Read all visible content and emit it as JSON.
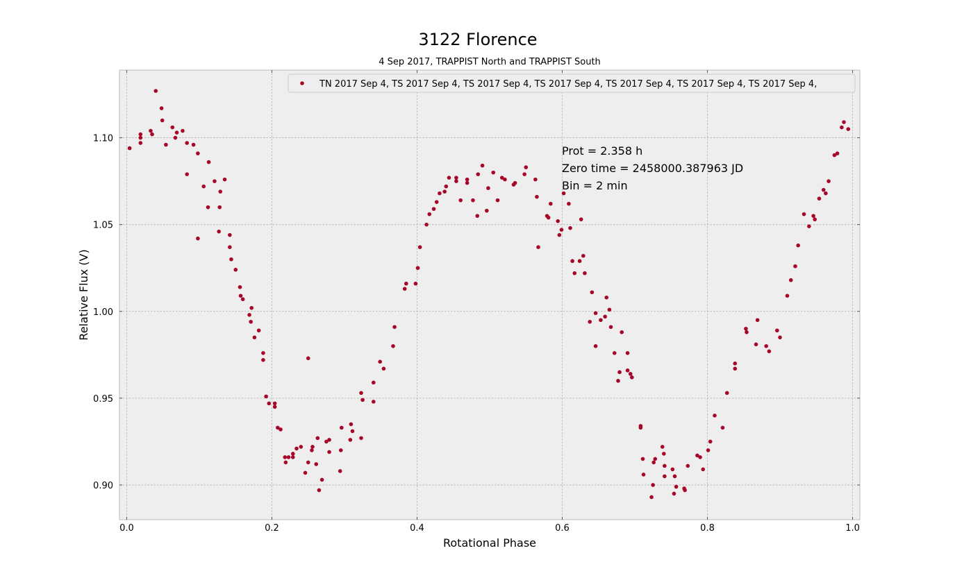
{
  "chart_data": {
    "type": "scatter",
    "title": "3122 Florence",
    "subtitle": "4 Sep 2017, TRAPPIST North and TRAPPIST South",
    "xlabel": "Rotational Phase",
    "ylabel": "Relative Flux (V)",
    "xlim": [
      -0.01,
      1.01
    ],
    "ylim": [
      0.88,
      1.139
    ],
    "xticks": [
      "0.0",
      "0.2",
      "0.4",
      "0.6",
      "0.8",
      "1.0"
    ],
    "yticks": [
      "0.90",
      "0.95",
      "1.00",
      "1.05",
      "1.10"
    ],
    "grid": true,
    "legend_placement": "top-right",
    "legend_text": "TN 2017 Sep 4, TS 2017 Sep 4, TS 2017 Sep 4, TS 2017 Sep 4, TS 2017 Sep 4, TS 2017 Sep 4, TS 2017 Sep 4,",
    "annotations": [
      "Prot = 2.358 h",
      "Zero time = 2458000.387963 JD",
      "Bin = 2 min"
    ],
    "marker_color": "#a60628",
    "series": [
      {
        "points": [
          [
            0.004,
            1.094
          ],
          [
            0.019,
            1.102
          ],
          [
            0.019,
            1.1
          ],
          [
            0.019,
            1.097
          ],
          [
            0.033,
            1.104
          ],
          [
            0.035,
            1.102
          ],
          [
            0.04,
            1.127
          ],
          [
            0.048,
            1.117
          ],
          [
            0.049,
            1.11
          ],
          [
            0.054,
            1.096
          ],
          [
            0.063,
            1.106
          ],
          [
            0.067,
            1.1
          ],
          [
            0.069,
            1.103
          ],
          [
            0.077,
            1.104
          ],
          [
            0.083,
            1.097
          ],
          [
            0.083,
            1.079
          ],
          [
            0.092,
            1.096
          ],
          [
            0.098,
            1.091
          ],
          [
            0.098,
            1.042
          ],
          [
            0.106,
            1.072
          ],
          [
            0.112,
            1.06
          ],
          [
            0.113,
            1.086
          ],
          [
            0.121,
            1.075
          ],
          [
            0.127,
            1.046
          ],
          [
            0.128,
            1.06
          ],
          [
            0.129,
            1.069
          ],
          [
            0.135,
            1.076
          ],
          [
            0.142,
            1.044
          ],
          [
            0.142,
            1.037
          ],
          [
            0.144,
            1.03
          ],
          [
            0.15,
            1.024
          ],
          [
            0.156,
            1.014
          ],
          [
            0.157,
            1.009
          ],
          [
            0.16,
            1.007
          ],
          [
            0.169,
            0.998
          ],
          [
            0.171,
            0.994
          ],
          [
            0.172,
            1.002
          ],
          [
            0.176,
            0.985
          ],
          [
            0.182,
            0.989
          ],
          [
            0.188,
            0.976
          ],
          [
            0.188,
            0.972
          ],
          [
            0.192,
            0.951
          ],
          [
            0.196,
            0.947
          ],
          [
            0.204,
            0.947
          ],
          [
            0.204,
            0.945
          ],
          [
            0.208,
            0.933
          ],
          [
            0.212,
            0.932
          ],
          [
            0.218,
            0.916
          ],
          [
            0.219,
            0.913
          ],
          [
            0.223,
            0.916
          ],
          [
            0.229,
            0.916
          ],
          [
            0.229,
            0.918
          ],
          [
            0.234,
            0.921
          ],
          [
            0.24,
            0.922
          ],
          [
            0.246,
            0.907
          ],
          [
            0.25,
            0.973
          ],
          [
            0.25,
            0.913
          ],
          [
            0.255,
            0.92
          ],
          [
            0.256,
            0.922
          ],
          [
            0.261,
            0.912
          ],
          [
            0.263,
            0.927
          ],
          [
            0.265,
            0.897
          ],
          [
            0.269,
            0.903
          ],
          [
            0.275,
            0.925
          ],
          [
            0.279,
            0.926
          ],
          [
            0.279,
            0.919
          ],
          [
            0.294,
            0.908
          ],
          [
            0.295,
            0.92
          ],
          [
            0.296,
            0.933
          ],
          [
            0.308,
            0.926
          ],
          [
            0.309,
            0.935
          ],
          [
            0.311,
            0.931
          ],
          [
            0.323,
            0.927
          ],
          [
            0.323,
            0.953
          ],
          [
            0.325,
            0.949
          ],
          [
            0.34,
            0.959
          ],
          [
            0.34,
            0.948
          ],
          [
            0.349,
            0.971
          ],
          [
            0.354,
            0.967
          ],
          [
            0.367,
            0.98
          ],
          [
            0.369,
            0.991
          ],
          [
            0.383,
            1.013
          ],
          [
            0.385,
            1.016
          ],
          [
            0.398,
            1.016
          ],
          [
            0.401,
            1.025
          ],
          [
            0.404,
            1.037
          ],
          [
            0.413,
            1.05
          ],
          [
            0.417,
            1.056
          ],
          [
            0.423,
            1.059
          ],
          [
            0.427,
            1.063
          ],
          [
            0.431,
            1.068
          ],
          [
            0.438,
            1.069
          ],
          [
            0.44,
            1.072
          ],
          [
            0.444,
            1.077
          ],
          [
            0.454,
            1.077
          ],
          [
            0.454,
            1.075
          ],
          [
            0.46,
            1.064
          ],
          [
            0.469,
            1.076
          ],
          [
            0.469,
            1.074
          ],
          [
            0.477,
            1.064
          ],
          [
            0.483,
            1.055
          ],
          [
            0.484,
            1.079
          ],
          [
            0.49,
            1.084
          ],
          [
            0.496,
            1.058
          ],
          [
            0.498,
            1.071
          ],
          [
            0.505,
            1.08
          ],
          [
            0.511,
            1.064
          ],
          [
            0.517,
            1.077
          ],
          [
            0.521,
            1.076
          ],
          [
            0.533,
            1.073
          ],
          [
            0.535,
            1.074
          ],
          [
            0.548,
            1.079
          ],
          [
            0.55,
            1.083
          ],
          [
            0.563,
            1.076
          ],
          [
            0.565,
            1.066
          ],
          [
            0.567,
            1.037
          ],
          [
            0.579,
            1.055
          ],
          [
            0.581,
            1.054
          ],
          [
            0.584,
            1.062
          ],
          [
            0.594,
            1.052
          ],
          [
            0.596,
            1.044
          ],
          [
            0.599,
            1.047
          ],
          [
            0.602,
            1.068
          ],
          [
            0.609,
            1.062
          ],
          [
            0.611,
            1.048
          ],
          [
            0.614,
            1.029
          ],
          [
            0.617,
            1.022
          ],
          [
            0.624,
            1.029
          ],
          [
            0.626,
            1.053
          ],
          [
            0.629,
            1.032
          ],
          [
            0.631,
            1.022
          ],
          [
            0.638,
            0.994
          ],
          [
            0.641,
            1.011
          ],
          [
            0.646,
            0.98
          ],
          [
            0.646,
            0.999
          ],
          [
            0.653,
            0.995
          ],
          [
            0.659,
            0.997
          ],
          [
            0.661,
            1.008
          ],
          [
            0.665,
            1.001
          ],
          [
            0.667,
            0.991
          ],
          [
            0.672,
            0.976
          ],
          [
            0.677,
            0.96
          ],
          [
            0.679,
            0.965
          ],
          [
            0.682,
            0.988
          ],
          [
            0.69,
            0.976
          ],
          [
            0.69,
            0.966
          ],
          [
            0.694,
            0.964
          ],
          [
            0.696,
            0.962
          ],
          [
            0.708,
            0.934
          ],
          [
            0.708,
            0.933
          ],
          [
            0.711,
            0.915
          ],
          [
            0.712,
            0.906
          ],
          [
            0.723,
            0.893
          ],
          [
            0.725,
            0.9
          ],
          [
            0.726,
            0.913
          ],
          [
            0.728,
            0.915
          ],
          [
            0.738,
            0.922
          ],
          [
            0.74,
            0.918
          ],
          [
            0.741,
            0.905
          ],
          [
            0.741,
            0.911
          ],
          [
            0.752,
            0.909
          ],
          [
            0.754,
            0.895
          ],
          [
            0.755,
            0.905
          ],
          [
            0.757,
            0.899
          ],
          [
            0.768,
            0.898
          ],
          [
            0.769,
            0.897
          ],
          [
            0.773,
            0.911
          ],
          [
            0.786,
            0.917
          ],
          [
            0.79,
            0.916
          ],
          [
            0.794,
            0.909
          ],
          [
            0.801,
            0.92
          ],
          [
            0.804,
            0.925
          ],
          [
            0.81,
            0.94
          ],
          [
            0.821,
            0.933
          ],
          [
            0.827,
            0.953
          ],
          [
            0.838,
            0.967
          ],
          [
            0.838,
            0.97
          ],
          [
            0.853,
            0.99
          ],
          [
            0.854,
            0.988
          ],
          [
            0.867,
            0.981
          ],
          [
            0.869,
            0.995
          ],
          [
            0.881,
            0.98
          ],
          [
            0.885,
            0.977
          ],
          [
            0.896,
            0.989
          ],
          [
            0.9,
            0.985
          ],
          [
            0.91,
            1.009
          ],
          [
            0.915,
            1.018
          ],
          [
            0.921,
            1.026
          ],
          [
            0.925,
            1.038
          ],
          [
            0.933,
            1.056
          ],
          [
            0.94,
            1.049
          ],
          [
            0.946,
            1.055
          ],
          [
            0.948,
            1.053
          ],
          [
            0.954,
            1.065
          ],
          [
            0.96,
            1.07
          ],
          [
            0.963,
            1.068
          ],
          [
            0.967,
            1.075
          ],
          [
            0.975,
            1.09
          ],
          [
            0.979,
            1.091
          ],
          [
            0.985,
            1.106
          ],
          [
            0.988,
            1.109
          ],
          [
            0.994,
            1.105
          ]
        ]
      }
    ]
  }
}
